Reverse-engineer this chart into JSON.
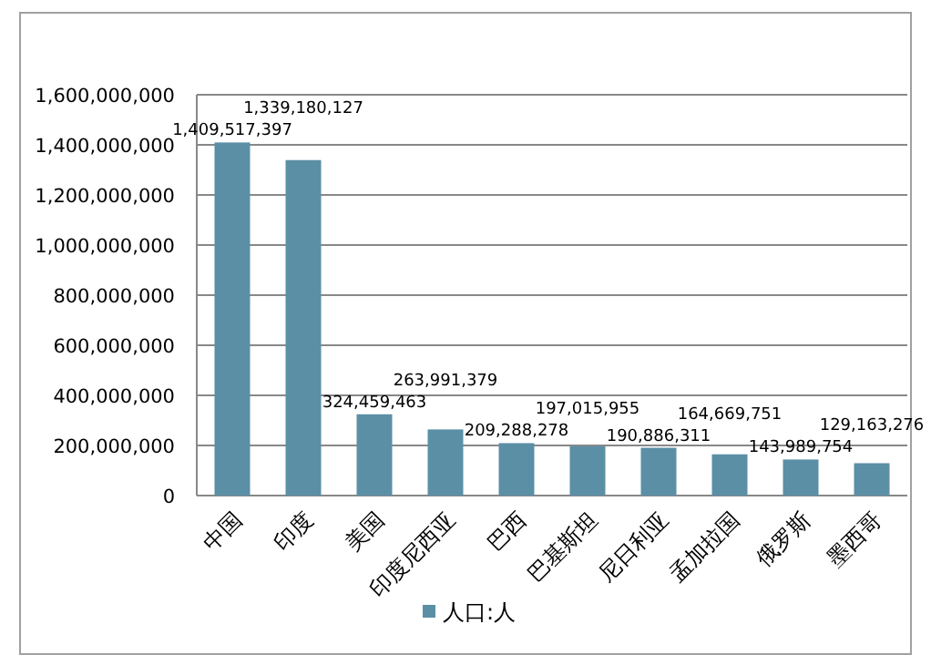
{
  "chart_data": {
    "type": "bar",
    "categories": [
      "中国",
      "印度",
      "美国",
      "印度尼西亚",
      "巴西",
      "巴基斯坦",
      "尼日利亚",
      "孟加拉国",
      "俄罗斯",
      "墨西哥"
    ],
    "series": [
      {
        "name": "人口:人",
        "color": "#5b8fa6",
        "values": [
          1409517397,
          1339180127,
          324459463,
          263991379,
          209288278,
          197015955,
          190886311,
          164669751,
          143989754,
          129163276
        ],
        "value_labels": [
          "1,409,517,397",
          "1,339,180,127",
          "324,459,463",
          "263,991,379",
          "209,288,278",
          "197,015,955",
          "190,886,311",
          "164,669,751",
          "143,989,754",
          "129,163,276"
        ]
      }
    ],
    "ylim": [
      0,
      1600000000
    ],
    "yticks": [
      {
        "value": 0,
        "label": "0"
      },
      {
        "value": 200000000,
        "label": "200,000,000"
      },
      {
        "value": 400000000,
        "label": "400,000,000"
      },
      {
        "value": 600000000,
        "label": "600,000,000"
      },
      {
        "value": 800000000,
        "label": "800,000,000"
      },
      {
        "value": 1000000000,
        "label": "1,000,000,000"
      },
      {
        "value": 1200000000,
        "label": "1,200,000,000"
      },
      {
        "value": 1400000000,
        "label": "1,400,000,000"
      },
      {
        "value": 1600000000,
        "label": "1,600,000,000"
      }
    ],
    "grid": "y",
    "legend": "bottom"
  }
}
